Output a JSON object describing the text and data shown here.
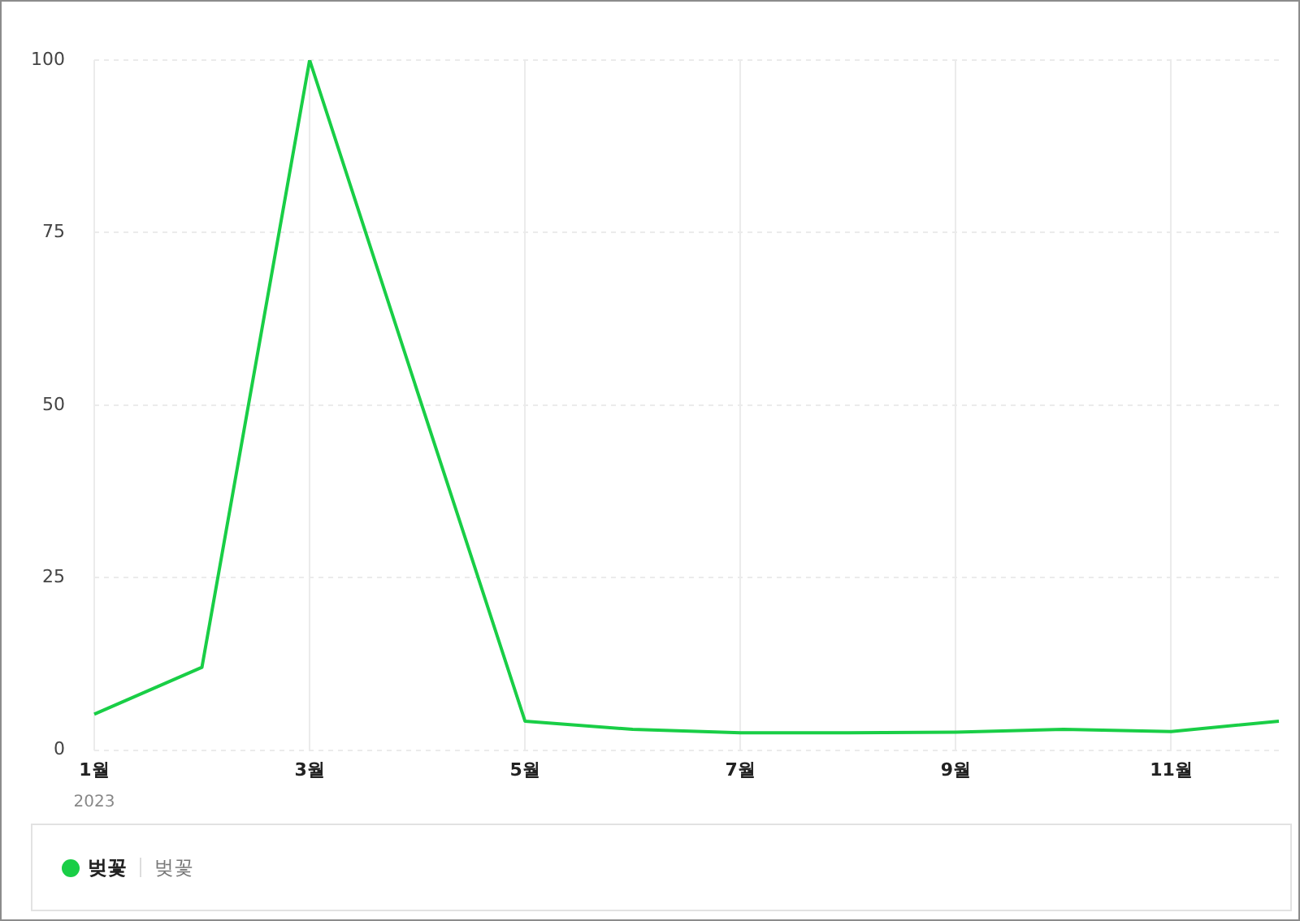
{
  "chart_data": {
    "type": "line",
    "categories": [
      "1월",
      null,
      "3월",
      null,
      "5월",
      null,
      "7월",
      null,
      "9월",
      null,
      "11월",
      null
    ],
    "series": [
      {
        "name": "벚꽃",
        "color": "#19ce46",
        "values": [
          5.2,
          12,
          100,
          52,
          4.2,
          3,
          2.5,
          2.5,
          2.6,
          3,
          2.7,
          4.2
        ]
      }
    ],
    "ylim": [
      0,
      100
    ],
    "yticks": [
      0,
      25,
      50,
      75,
      100
    ],
    "grid": true,
    "legend": "bottom",
    "marker": "none",
    "line_style": "solid",
    "annotations": [
      "2023",
      "벚꽃"
    ]
  }
}
